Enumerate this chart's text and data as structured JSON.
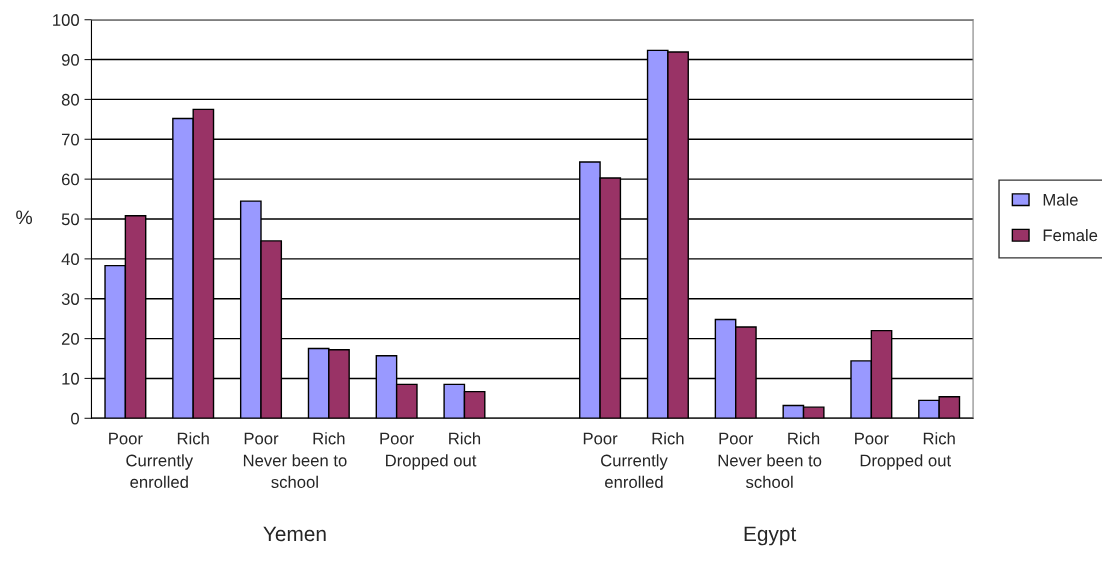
{
  "chart_data": {
    "type": "bar",
    "ylabel": "%",
    "categories": [
      "Poor",
      "Rich",
      "Poor",
      "Rich",
      "Poor",
      "Rich",
      null,
      "Poor",
      "Rich",
      "Poor",
      "Rich",
      "Poor",
      "Rich"
    ],
    "series": [
      {
        "name": "Male",
        "color": "#9999ff",
        "values": [
          38.3,
          75.2,
          54.5,
          17.5,
          15.7,
          8.5,
          null,
          64.3,
          92.3,
          24.8,
          3.2,
          14.4,
          4.5
        ]
      },
      {
        "name": "Female",
        "color": "#993366",
        "values": [
          50.8,
          77.5,
          44.5,
          17.2,
          8.5,
          6.7,
          null,
          60.3,
          91.9,
          22.9,
          2.8,
          22.0,
          5.4
        ]
      }
    ],
    "annotations": [
      "Currently\nenrolled",
      "Never been to\nschool",
      "Dropped out",
      "Yemen",
      "Currently\nenrolled",
      "Never been to\nschool",
      "Dropped out",
      "Egypt"
    ],
    "ylim": [
      0,
      100
    ],
    "yticks": [
      0,
      10,
      20,
      30,
      40,
      50,
      60,
      70,
      80,
      90,
      100
    ],
    "grid": "y",
    "legend": "right"
  }
}
